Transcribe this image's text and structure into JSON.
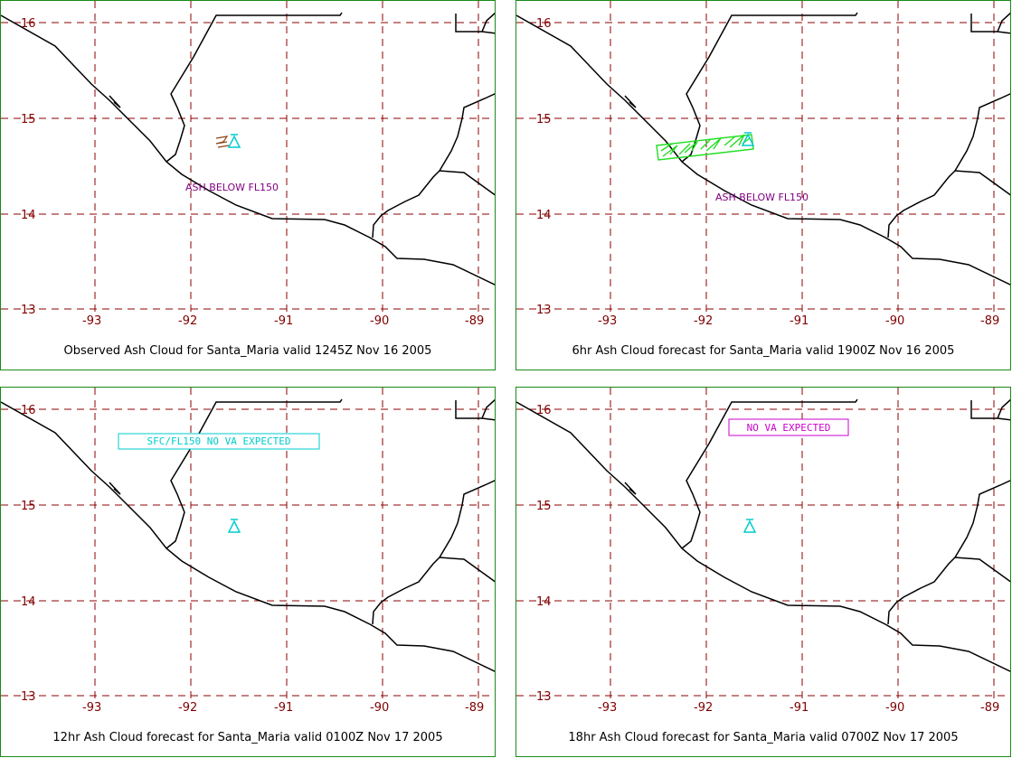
{
  "panels": [
    {
      "caption": "Observed Ash Cloud for Santa_Maria valid 1245Z Nov 16 2005",
      "annotation": "ASH BELOW FL150",
      "ash_cloud": "observed",
      "colors": {
        "annotation": "#800080",
        "cloud": "#8b4513"
      }
    },
    {
      "caption": "6hr Ash Cloud forecast for Santa_Maria valid 1900Z Nov 16 2005",
      "annotation": "ASH BELOW FL150",
      "ash_cloud": "forecast",
      "colors": {
        "annotation": "#800080",
        "cloud": "#22dd22"
      }
    },
    {
      "caption": "12hr Ash Cloud forecast for Santa_Maria valid 0100Z Nov 17 2005",
      "box_label": "SFC/FL150 NO VA EXPECTED",
      "colors": {
        "box": "#00cccc"
      }
    },
    {
      "caption": "18hr Ash Cloud forecast for Santa_Maria valid 0700Z Nov 17 2005",
      "box_label": "NO VA EXPECTED",
      "colors": {
        "box": "#cc00cc"
      }
    }
  ],
  "grid": {
    "lat_labels": [
      "16",
      "15",
      "14",
      "13"
    ],
    "lon_labels": [
      "-93",
      "-92",
      "-91",
      "-90",
      "-89"
    ]
  },
  "volcano": {
    "name": "Santa_Maria",
    "icon": "triangle-icon",
    "color": "#00cccc"
  },
  "colors": {
    "grid": "#8b0000",
    "coast": "#000000",
    "border": "#1a8a1a"
  }
}
